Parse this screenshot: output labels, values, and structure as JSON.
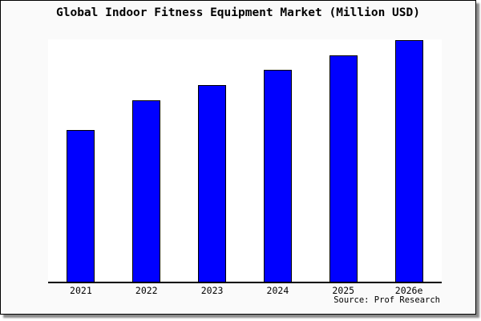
{
  "window": {
    "background_color": "#fafafa",
    "plot_background_color": "#ffffff",
    "frame_border_color": "#000000",
    "shadow_color": "#8a8a8a"
  },
  "chart_data": {
    "type": "bar",
    "title": "Global Indoor Fitness Equipment Market (Million USD)",
    "categories": [
      "2021",
      "2022",
      "2023",
      "2024",
      "2025",
      "2026e"
    ],
    "values": [
      62.8,
      75.1,
      81.4,
      87.7,
      93.7,
      100
    ],
    "values_note": "No y-axis scale or data labels shown in image; values are relative bar heights with 2026e = 100",
    "xlabel": "",
    "ylabel": "",
    "ylim": [
      0,
      100
    ],
    "grid": false,
    "legend": null,
    "bar_color": "#0000ff",
    "bar_border_color": "#000000",
    "axis_color": "#000000"
  },
  "footer": {
    "source_label": "Source: Prof Research"
  }
}
